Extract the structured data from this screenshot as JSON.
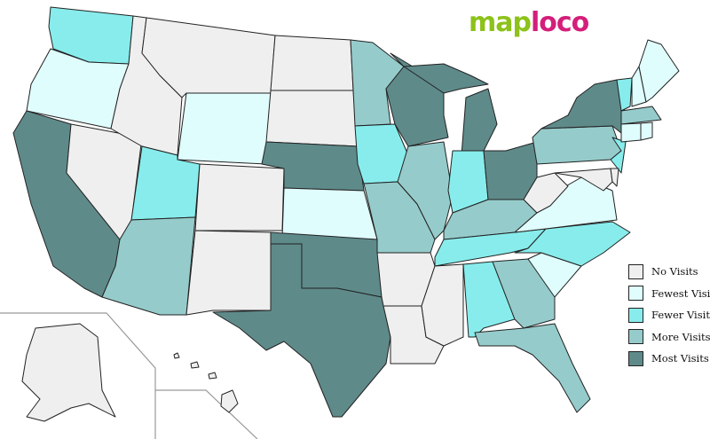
{
  "logo": {
    "part1": "map",
    "part2": "loco",
    "color1": "#8cc21a",
    "color2": "#d41f7a"
  },
  "legend": [
    {
      "key": "none",
      "label": "No Visits",
      "color": "#efefef"
    },
    {
      "key": "fewest",
      "label": "Fewest Visits",
      "color": "#e0fdfd"
    },
    {
      "key": "fewer",
      "label": "Fewer Visits",
      "color": "#88ecec"
    },
    {
      "key": "more",
      "label": "More Visits",
      "color": "#96cbcb"
    },
    {
      "key": "most",
      "label": "Most Visits",
      "color": "#5f8a8a"
    }
  ],
  "states": {
    "WA": "fewer",
    "OR": "fewest",
    "CA": "most",
    "NV": "none",
    "ID": "none",
    "MT": "none",
    "WY": "fewest",
    "UT": "fewer",
    "AZ": "more",
    "CO": "none",
    "NM": "none",
    "ND": "none",
    "SD": "none",
    "NE": "most",
    "KS": "fewest",
    "OK": "most",
    "TX": "most",
    "MN": "more",
    "IA": "fewer",
    "MO": "more",
    "AR": "none",
    "LA": "none",
    "WI": "most",
    "IL": "more",
    "MI": "most",
    "IN": "fewer",
    "OH": "most",
    "KY": "more",
    "TN": "fewer",
    "MS": "none",
    "AL": "fewer",
    "GA": "more",
    "FL": "more",
    "SC": "fewest",
    "NC": "fewer",
    "VA": "fewest",
    "WV": "none",
    "PA": "more",
    "NY": "most",
    "NJ": "fewer",
    "MD": "none",
    "DE": "none",
    "VT": "fewer",
    "NH": "fewest",
    "ME": "fewest",
    "MA": "more",
    "CT": "fewest",
    "RI": "fewest",
    "AK": "none",
    "HI": "none"
  }
}
